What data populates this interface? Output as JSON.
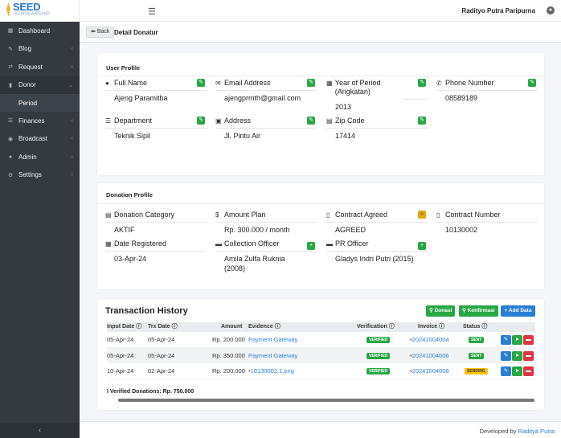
{
  "brand": {
    "name": "SEED",
    "subtitle": "SCHOLARSHIP"
  },
  "topbar": {
    "menu_icon": "hamburger-icon",
    "user_name": "Radityo Putra Paripurna",
    "user_icon": "user-circle-icon"
  },
  "sidebar": {
    "items": [
      {
        "label": "Dashboard",
        "icon": "dashboard-icon",
        "chevron": ""
      },
      {
        "label": "Blog",
        "icon": "edit-icon",
        "chevron": "‹"
      },
      {
        "label": "Request",
        "icon": "exchange-icon",
        "chevron": "‹"
      },
      {
        "label": "Donor",
        "icon": "bookmark-icon",
        "chevron": "⌄"
      },
      {
        "label": "Period",
        "icon": "",
        "chevron": ""
      },
      {
        "label": "Finances",
        "icon": "list-icon",
        "chevron": "‹"
      },
      {
        "label": "Broadcast",
        "icon": "broadcast-icon",
        "chevron": "‹"
      },
      {
        "label": "Admin",
        "icon": "user-icon",
        "chevron": "‹"
      },
      {
        "label": "Settings",
        "icon": "gear-icon",
        "chevron": "‹"
      }
    ],
    "collapse_glyph": "‹"
  },
  "page": {
    "back_label": "Back",
    "title": "Detail Donatur"
  },
  "user_profile": {
    "title": "User Profile",
    "fields": [
      {
        "label": "Full Name",
        "value": "Ajeng Paramitha",
        "icon": "user-icon"
      },
      {
        "label": "Email Address",
        "value": "ajengprmth@gmail.com",
        "icon": "envelope-icon"
      },
      {
        "label": "Year of Period (Angkatan)",
        "value": "2013",
        "icon": "calendar-icon"
      },
      {
        "label": "Phone Number",
        "value": "08589189",
        "icon": "phone-icon"
      },
      {
        "label": "Department",
        "value": "Teknik Sipil",
        "icon": "list-icon"
      },
      {
        "label": "Address",
        "value": "Jl. Pintu Air",
        "icon": "address-card-icon"
      },
      {
        "label": "Zip Code",
        "value": "17414",
        "icon": "zip-icon"
      }
    ]
  },
  "donation_profile": {
    "title": "Donation Profile",
    "fields": [
      {
        "label": "Donation Category",
        "value": "AKTIF",
        "icon": "category-icon"
      },
      {
        "label": "Amount Plan",
        "value": "Rp. 300.000 / month",
        "icon": "dollar-icon"
      },
      {
        "label": "Contract Agreed",
        "value": "AGREED",
        "icon": "file-icon"
      },
      {
        "label": "Contract Number",
        "value": "10130002",
        "icon": "file-icon"
      },
      {
        "label": "Date Registered",
        "value": "03-Apr-24",
        "icon": "calendar-icon"
      },
      {
        "label": "Collection Officer",
        "value": "Amila Zulfa Ruknia (2008)",
        "icon": "briefcase-icon"
      },
      {
        "label": "PR Officer",
        "value": "Gladys Indri Putri (2015)",
        "icon": "briefcase-icon"
      }
    ]
  },
  "transactions": {
    "title": "Transaction History",
    "buttons": {
      "donasi": "Donasi",
      "konfirmasi": "Konfirmasi",
      "add": "Add Data"
    },
    "columns": {
      "input_date": "Input Date",
      "trx_date": "Trx Date",
      "amount": "Amount",
      "evidence": "Evidence",
      "verification": "Verification",
      "invoice": "Invoice",
      "status": "Status"
    },
    "rows": [
      {
        "input_date": "05-Apr-24",
        "trx_date": "05-Apr-24",
        "amount": "Rp. 200.000",
        "evidence": "Payment Gateway",
        "verification": "VERIFIED",
        "invoice": "20241004004",
        "status": "SENT"
      },
      {
        "input_date": "05-Apr-24",
        "trx_date": "05-Apr-24",
        "amount": "Rp. 350.000",
        "evidence": "Payment Gateway",
        "verification": "VERIFIED",
        "invoice": "20241004006",
        "status": "SENT"
      },
      {
        "input_date": "10-Apr-24",
        "trx_date": "02-Apr-24",
        "amount": "Rp. 200.000",
        "evidence": "10130002.1.png",
        "verification": "VERIFIED",
        "invoice": "20241004008",
        "status": "SENDING"
      }
    ],
    "total": "l Verified Donations: Rp. 750.000"
  },
  "footer": {
    "prefix": "Developed by",
    "author": "Raditya Putra"
  },
  "colors": {
    "sidebar": "#343a40",
    "green": "#28a745",
    "blue": "#2a7fd4",
    "red": "#dc3545",
    "yellow": "#ffc107"
  }
}
